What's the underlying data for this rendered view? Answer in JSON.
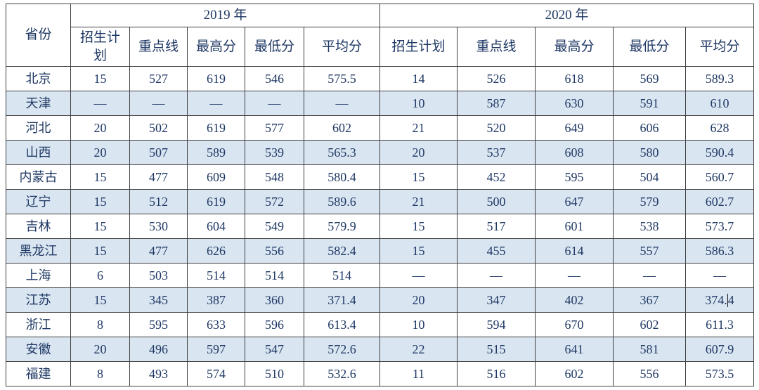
{
  "colors": {
    "stripe": "#d9e5f1",
    "text": "#1f3864",
    "border": "#3f3f3f",
    "background": "#ffffff"
  },
  "table": {
    "corner_header": "省份",
    "year_groups": [
      {
        "label": "2019 年",
        "sub_headers": [
          "招生计划",
          "重点线",
          "最高分",
          "最低分",
          "平均分"
        ]
      },
      {
        "label": "2020 年",
        "sub_headers": [
          "招生计划",
          "重点线",
          "最高分",
          "最低分",
          "平均分"
        ]
      }
    ],
    "rows": [
      {
        "province": "北京",
        "values": [
          "15",
          "527",
          "619",
          "546",
          "575.5",
          "14",
          "526",
          "618",
          "569",
          "589.3"
        ]
      },
      {
        "province": "天津",
        "values": [
          "—",
          "—",
          "—",
          "—",
          "—",
          "10",
          "587",
          "630",
          "591",
          "610"
        ]
      },
      {
        "province": "河北",
        "values": [
          "20",
          "502",
          "619",
          "577",
          "602",
          "21",
          "520",
          "649",
          "606",
          "628"
        ]
      },
      {
        "province": "山西",
        "values": [
          "20",
          "507",
          "589",
          "539",
          "565.3",
          "20",
          "537",
          "608",
          "580",
          "590.4"
        ]
      },
      {
        "province": "内蒙古",
        "values": [
          "15",
          "477",
          "609",
          "548",
          "580.4",
          "15",
          "452",
          "595",
          "504",
          "560.7"
        ]
      },
      {
        "province": "辽宁",
        "values": [
          "15",
          "512",
          "619",
          "572",
          "589.6",
          "21",
          "500",
          "647",
          "579",
          "602.7"
        ]
      },
      {
        "province": "吉林",
        "values": [
          "15",
          "530",
          "604",
          "549",
          "579.9",
          "15",
          "517",
          "601",
          "538",
          "573.7"
        ]
      },
      {
        "province": "黑龙江",
        "values": [
          "15",
          "477",
          "626",
          "556",
          "582.4",
          "15",
          "455",
          "614",
          "557",
          "586.3"
        ]
      },
      {
        "province": "上海",
        "values": [
          "6",
          "503",
          "514",
          "514",
          "514",
          "—",
          "—",
          "—",
          "—",
          "—"
        ]
      },
      {
        "province": "江苏",
        "values": [
          "15",
          "345",
          "387",
          "360",
          "371.4",
          "20",
          "347",
          "402",
          "367",
          "374.4"
        ]
      },
      {
        "province": "浙江",
        "values": [
          "8",
          "595",
          "633",
          "596",
          "613.4",
          "10",
          "594",
          "670",
          "602",
          "611.3"
        ]
      },
      {
        "province": "安徽",
        "values": [
          "20",
          "496",
          "597",
          "547",
          "572.6",
          "22",
          "515",
          "641",
          "581",
          "607.9"
        ]
      },
      {
        "province": "福建",
        "values": [
          "8",
          "493",
          "574",
          "510",
          "532.6",
          "11",
          "516",
          "602",
          "556",
          "573.5"
        ]
      }
    ],
    "text_cursor": {
      "row_index": 9,
      "value_index": 9,
      "before": "374.",
      "after": "4"
    }
  }
}
